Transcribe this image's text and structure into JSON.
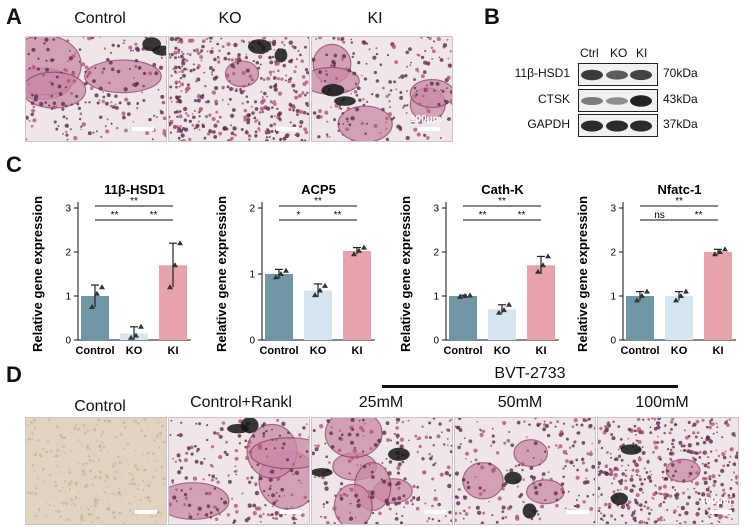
{
  "panels": {
    "A": {
      "letter": "A",
      "conditions": [
        "Control",
        "KO",
        "KI"
      ],
      "scale_label": "100μm"
    },
    "B": {
      "letter": "B",
      "lanes": [
        "Ctrl",
        "KO",
        "KI"
      ],
      "rows": [
        {
          "protein": "11β-HSD1",
          "size": "70kDa",
          "intensity": [
            0.75,
            0.55,
            0.7
          ]
        },
        {
          "protein": "CTSK",
          "size": "43kDa",
          "intensity": [
            0.35,
            0.25,
            0.9
          ]
        },
        {
          "protein": "GAPDH",
          "size": "37kDa",
          "intensity": [
            0.85,
            0.85,
            0.85
          ]
        }
      ]
    },
    "C": {
      "letter": "C"
    },
    "D": {
      "letter": "D",
      "treatment_label": "BVT-2733",
      "conditions": [
        "Control",
        "Control+Rankl",
        "25mM",
        "50mM",
        "100mM"
      ],
      "scale_label": "100μm"
    }
  },
  "colors": {
    "control": "#6f97a6",
    "ko": "#d6e6f1",
    "ki": "#e6a3ab",
    "stain": "#b0527b"
  },
  "chart_data": [
    {
      "type": "bar",
      "title": "11β-HSD1",
      "ylabel": "Relative gene expression",
      "categories": [
        "Control",
        "KO",
        "KI"
      ],
      "values": [
        1.0,
        0.15,
        1.7
      ],
      "errors": [
        0.25,
        0.15,
        0.5
      ],
      "points": [
        [
          0.75,
          1.05,
          1.2
        ],
        [
          0.05,
          0.1,
          0.3
        ],
        [
          1.2,
          1.7,
          2.2
        ]
      ],
      "ylim": [
        0,
        3
      ],
      "yticks": [
        0,
        1,
        2,
        3
      ],
      "significance": [
        {
          "from": 0,
          "to": 2,
          "label": "**"
        },
        {
          "from": 0,
          "to": 1,
          "label": "**"
        },
        {
          "from": 1,
          "to": 2,
          "label": "**"
        }
      ]
    },
    {
      "type": "bar",
      "title": "ACP5",
      "ylabel": "Relative gene expression",
      "categories": [
        "Control",
        "KO",
        "KI"
      ],
      "values": [
        1.0,
        0.75,
        1.35
      ],
      "errors": [
        0.07,
        0.1,
        0.05
      ],
      "points": [
        [
          0.95,
          1.0,
          1.05
        ],
        [
          0.68,
          0.75,
          0.82
        ],
        [
          1.3,
          1.35,
          1.4
        ]
      ],
      "ylim": [
        0,
        2
      ],
      "yticks": [
        0,
        1,
        2
      ],
      "significance": [
        {
          "from": 0,
          "to": 2,
          "label": "**"
        },
        {
          "from": 0,
          "to": 1,
          "label": "*"
        },
        {
          "from": 1,
          "to": 2,
          "label": "**"
        }
      ]
    },
    {
      "type": "bar",
      "title": "Cath-K",
      "ylabel": "Relative gene expression",
      "categories": [
        "Control",
        "KO",
        "KI"
      ],
      "values": [
        1.0,
        0.7,
        1.7
      ],
      "errors": [
        0.02,
        0.1,
        0.2
      ],
      "points": [
        [
          0.98,
          1.0,
          1.01
        ],
        [
          0.62,
          0.68,
          0.8
        ],
        [
          1.55,
          1.7,
          1.9
        ]
      ],
      "ylim": [
        0,
        3
      ],
      "yticks": [
        0,
        1,
        2,
        3
      ],
      "significance": [
        {
          "from": 0,
          "to": 2,
          "label": "**"
        },
        {
          "from": 0,
          "to": 1,
          "label": "**"
        },
        {
          "from": 1,
          "to": 2,
          "label": "**"
        }
      ]
    },
    {
      "type": "bar",
      "title": "Nfatc-1",
      "ylabel": "Relative gene expression",
      "categories": [
        "Control",
        "KO",
        "KI"
      ],
      "values": [
        1.0,
        1.0,
        2.0
      ],
      "errors": [
        0.1,
        0.1,
        0.06
      ],
      "points": [
        [
          0.9,
          1.0,
          1.1
        ],
        [
          0.9,
          1.0,
          1.1
        ],
        [
          1.95,
          2.0,
          2.06
        ]
      ],
      "ylim": [
        0,
        3
      ],
      "yticks": [
        0,
        1,
        2,
        3
      ],
      "significance": [
        {
          "from": 0,
          "to": 2,
          "label": "**"
        },
        {
          "from": 0,
          "to": 1,
          "label": "ns"
        },
        {
          "from": 1,
          "to": 2,
          "label": "**"
        }
      ]
    }
  ]
}
